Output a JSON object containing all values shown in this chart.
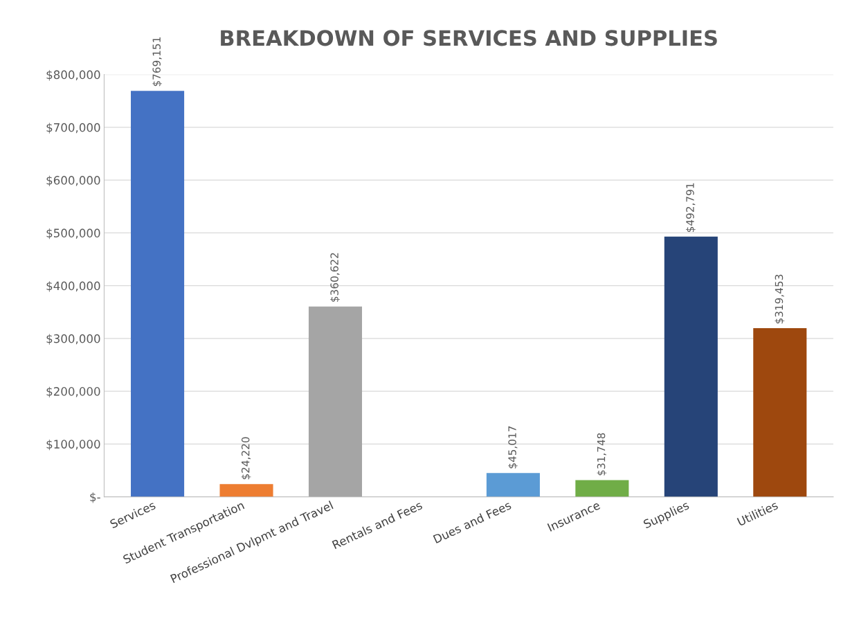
{
  "chart_data": {
    "type": "bar",
    "title": "BREAKDOWN OF SERVICES AND SUPPLIES",
    "categories": [
      "Services",
      "Student Transportation",
      "Professional Dvlpmt and Travel",
      "Rentals and Fees",
      "Dues and Fees",
      "Insurance",
      "Supplies",
      "Utilities"
    ],
    "values": [
      769151,
      24220,
      360622,
      null,
      45017,
      31748,
      492791,
      319453
    ],
    "colors": [
      "#4472c4",
      "#ed7d31",
      "#a5a5a5",
      null,
      "#5b9bd5",
      "#70ad47",
      "#264478",
      "#9e480e"
    ],
    "value_labels": [
      "$769,151",
      "$24,220",
      "$360,622",
      null,
      "$45,017",
      "$31,748",
      "$492,791",
      "$319,453"
    ],
    "ylim": [
      0,
      800000
    ],
    "yticks": [
      {
        "value": 0,
        "label": "$-"
      },
      {
        "value": 100000,
        "label": "$100,000"
      },
      {
        "value": 200000,
        "label": "$200,000"
      },
      {
        "value": 300000,
        "label": "$300,000"
      },
      {
        "value": 400000,
        "label": "$400,000"
      },
      {
        "value": 500000,
        "label": "$500,000"
      },
      {
        "value": 600000,
        "label": "$600,000"
      },
      {
        "value": 700000,
        "label": "$700,000"
      },
      {
        "value": 800000,
        "label": "$800,000"
      }
    ],
    "grid": "y"
  }
}
